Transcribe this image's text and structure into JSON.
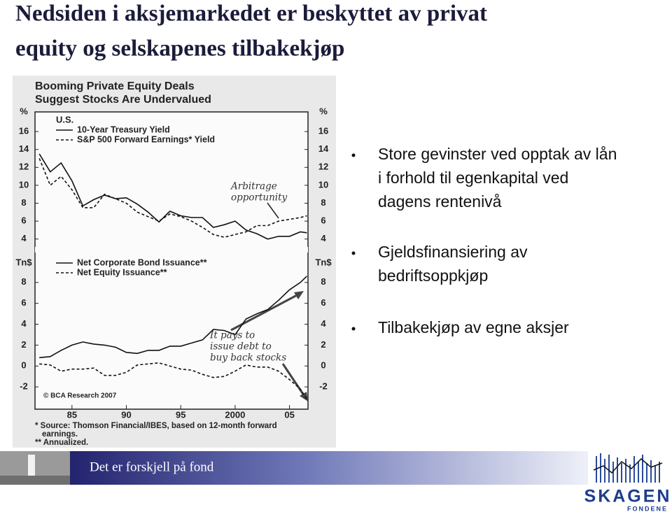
{
  "slide": {
    "title_lines": [
      "Nedsiden i aksjemarkedet er beskyttet av privat",
      "equity og selskapenes tilbakekjøp"
    ],
    "bullets": [
      [
        "Store gevinster ved opptak av lån",
        "i forhold til egenkapital ved",
        "dagens rentenivå"
      ],
      [
        "Gjeldsfinansiering av",
        "bedriftsoppkjøp"
      ],
      [
        "Tilbakekjøp av egne aksjer"
      ]
    ],
    "footer": {
      "tagline": "Det er forskjell på fond",
      "logo": "SKAGEN",
      "logo_sub": "FONDENE"
    }
  },
  "chart_notes": {
    "title_lines": [
      "Booming Private Equity Deals",
      "Suggest Stocks Are Undervalued"
    ],
    "source": "© BCA Research 2007",
    "footnotes": [
      "* Source: Thomson Financial/IBES, based on 12-month forward",
      "earnings.",
      "** Annualized."
    ]
  },
  "chart_data": [
    {
      "type": "line",
      "y_unit": "%",
      "region": "U.S.",
      "annotation_lines": [
        "Arbitrage",
        "opportunity"
      ],
      "x": [
        1982,
        1983,
        1984,
        1985,
        1986,
        1987,
        1988,
        1989,
        1990,
        1991,
        1992,
        1993,
        1994,
        1995,
        1996,
        1997,
        1998,
        1999,
        2000,
        2001,
        2002,
        2003,
        2004,
        2005,
        2006,
        2006.6
      ],
      "xlim": [
        1981.6,
        2006.7
      ],
      "ylim": [
        3.2,
        17.8
      ],
      "yticks": [
        4,
        6,
        8,
        10,
        12,
        14,
        16
      ],
      "series": [
        {
          "name": "10-Year Treasury Yield",
          "color": "#111111",
          "style": "solid",
          "values": [
            13.5,
            11.5,
            12.5,
            10.5,
            7.7,
            8.4,
            8.9,
            8.5,
            8.6,
            7.9,
            7.0,
            5.9,
            7.1,
            6.6,
            6.4,
            6.4,
            5.3,
            5.6,
            6.0,
            5.0,
            4.6,
            4.0,
            4.3,
            4.3,
            4.8,
            4.7
          ]
        },
        {
          "name": "S&P 500 Forward Earnings* Yield",
          "color": "#111111",
          "style": "dashed",
          "values": [
            13.0,
            10.0,
            11.0,
            9.5,
            7.5,
            7.5,
            9.0,
            8.5,
            8.0,
            7.0,
            6.5,
            6.0,
            6.8,
            6.5,
            6.0,
            5.3,
            4.5,
            4.2,
            4.5,
            4.8,
            5.5,
            5.5,
            6.0,
            6.2,
            6.4,
            6.6
          ]
        }
      ]
    },
    {
      "type": "line",
      "y_unit": "Tn$",
      "annotation_lines": [
        "It pays to",
        "issue debt to",
        "buy back stocks"
      ],
      "x": [
        1982,
        1983,
        1984,
        1985,
        1986,
        1987,
        1988,
        1989,
        1990,
        1991,
        1992,
        1993,
        1994,
        1995,
        1996,
        1997,
        1998,
        1999,
        2000,
        2001,
        2002,
        2003,
        2004,
        2005,
        2006,
        2006.6
      ],
      "xlim": [
        1981.6,
        2006.7
      ],
      "xticks": [
        {
          "value": 1985,
          "label": "85"
        },
        {
          "value": 1990,
          "label": "90"
        },
        {
          "value": 1995,
          "label": "95"
        },
        2000,
        {
          "value": 2005,
          "label": "05"
        }
      ],
      "ylim": [
        -3.8,
        10.8
      ],
      "yticks": [
        -2,
        0,
        2,
        4,
        6,
        8
      ],
      "series": [
        {
          "name": "Net Corporate Bond Issuance**",
          "color": "#111111",
          "style": "solid",
          "values": [
            0.8,
            0.9,
            1.5,
            2.0,
            2.3,
            2.1,
            2.0,
            1.8,
            1.3,
            1.2,
            1.5,
            1.5,
            1.9,
            1.9,
            2.2,
            2.5,
            3.5,
            3.4,
            3.0,
            4.5,
            5.0,
            5.4,
            6.3,
            7.3,
            8.0,
            8.6
          ]
        },
        {
          "name": "Net Equity Issuance**",
          "color": "#111111",
          "style": "dashed",
          "values": [
            0.2,
            0.1,
            -0.5,
            -0.3,
            -0.3,
            -0.2,
            -0.9,
            -0.9,
            -0.6,
            0.1,
            0.2,
            0.3,
            0.0,
            -0.3,
            -0.4,
            -0.8,
            -1.1,
            -1.0,
            -0.5,
            0.1,
            -0.1,
            -0.1,
            -0.5,
            -1.3,
            -2.2,
            -3.2
          ]
        }
      ]
    }
  ]
}
